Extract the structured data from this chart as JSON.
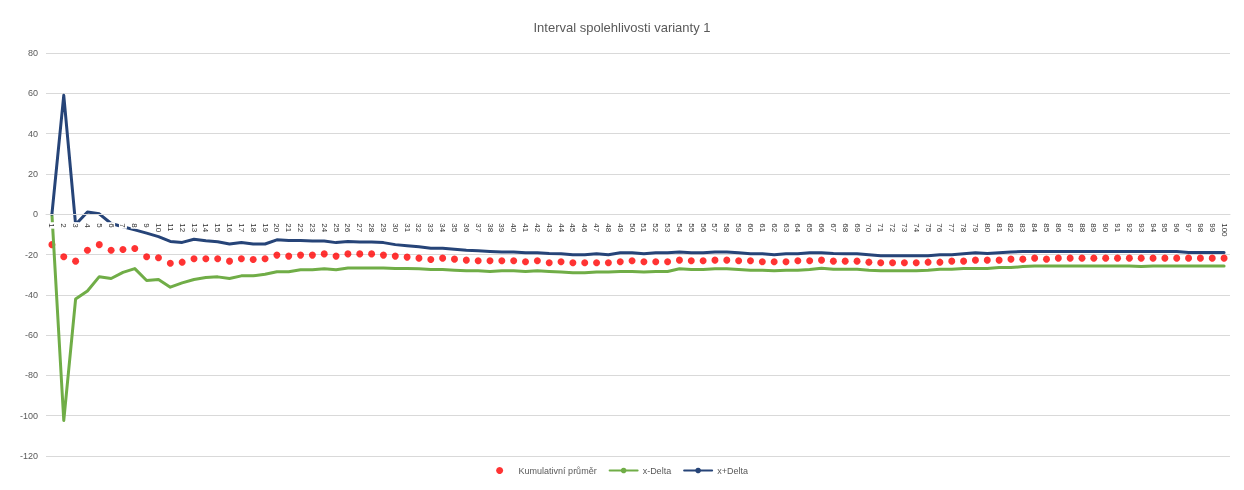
{
  "chart_data": {
    "type": "line",
    "title": "Interval spolehlivosti varianty 1",
    "categories": [
      "1",
      "2",
      "3",
      "4",
      "5",
      "6",
      "7",
      "8",
      "9",
      "10",
      "11",
      "12",
      "13",
      "14",
      "15",
      "16",
      "17",
      "18",
      "19",
      "20",
      "21",
      "22",
      "23",
      "24",
      "25",
      "26",
      "27",
      "28",
      "29",
      "30",
      "31",
      "32",
      "33",
      "34",
      "35",
      "36",
      "37",
      "38",
      "39",
      "40",
      "41",
      "42",
      "43",
      "44",
      "45",
      "46",
      "47",
      "48",
      "49",
      "50",
      "51",
      "52",
      "53",
      "54",
      "55",
      "56",
      "57",
      "58",
      "59",
      "60",
      "61",
      "62",
      "63",
      "64",
      "65",
      "66",
      "67",
      "68",
      "69",
      "70",
      "71",
      "72",
      "73",
      "74",
      "75",
      "76",
      "77",
      "78",
      "79",
      "80",
      "81",
      "82",
      "83",
      "84",
      "85",
      "86",
      "87",
      "88",
      "89",
      "90",
      "91",
      "92",
      "93",
      "94",
      "95",
      "96",
      "97",
      "98",
      "99",
      "100"
    ],
    "series": [
      {
        "name": "Kumulativní průměr",
        "type": "scatter",
        "marker": "circle",
        "color": "#ff0000",
        "values": [
          -15.1,
          -21.1,
          -23.3,
          -17.9,
          -15.1,
          -17.9,
          -17.5,
          -17.0,
          -21.1,
          -21.6,
          -24.3,
          -23.8,
          -22.1,
          -22.1,
          -22.1,
          -23.3,
          -22.1,
          -22.5,
          -22.1,
          -20.3,
          -20.8,
          -20.3,
          -20.3,
          -19.7,
          -20.8,
          -19.7,
          -19.7,
          -19.7,
          -20.3,
          -20.8,
          -21.3,
          -21.8,
          -22.5,
          -21.8,
          -22.3,
          -22.8,
          -23.1,
          -23.1,
          -23.1,
          -23.1,
          -23.6,
          -23.1,
          -24.1,
          -23.6,
          -24.1,
          -24.1,
          -24.1,
          -24.1,
          -23.6,
          -23.1,
          -23.6,
          -23.6,
          -23.6,
          -22.8,
          -23.1,
          -23.1,
          -22.8,
          -22.8,
          -23.1,
          -23.1,
          -23.6,
          -23.6,
          -23.6,
          -23.1,
          -23.1,
          -22.8,
          -23.3,
          -23.3,
          -23.3,
          -23.8,
          -24.1,
          -24.1,
          -24.1,
          -24.1,
          -23.8,
          -23.8,
          -23.3,
          -23.3,
          -22.8,
          -22.8,
          -22.8,
          -22.3,
          -22.3,
          -21.8,
          -22.3,
          -21.8,
          -21.8,
          -21.8,
          -21.8,
          -21.8,
          -21.8,
          -21.8,
          -21.8,
          -21.8,
          -21.8,
          -21.8,
          -21.8,
          -21.8,
          -21.8,
          -21.8
        ]
      },
      {
        "name": "x-Delta",
        "type": "line",
        "color": "#70ad47",
        "values": [
          0,
          -102.4,
          -42.1,
          -38.1,
          -31.0,
          -31.9,
          -28.9,
          -27.0,
          -32.9,
          -32.4,
          -36.2,
          -34.1,
          -32.4,
          -31.4,
          -31.1,
          -31.9,
          -30.6,
          -30.6,
          -29.8,
          -28.6,
          -28.6,
          -27.6,
          -27.6,
          -27.1,
          -27.6,
          -26.7,
          -26.7,
          -26.7,
          -26.7,
          -27.0,
          -26.9,
          -27.1,
          -27.4,
          -27.4,
          -27.8,
          -28.1,
          -28.1,
          -28.4,
          -28.1,
          -28.1,
          -28.4,
          -28.1,
          -28.4,
          -28.7,
          -29.0,
          -29.0,
          -28.7,
          -28.7,
          -28.4,
          -28.4,
          -28.7,
          -28.4,
          -28.4,
          -27.1,
          -27.4,
          -27.4,
          -27.1,
          -27.1,
          -27.4,
          -27.8,
          -27.8,
          -28.1,
          -27.8,
          -27.8,
          -27.4,
          -26.8,
          -27.3,
          -27.3,
          -27.3,
          -27.8,
          -28.1,
          -28.1,
          -28.1,
          -28.1,
          -27.8,
          -27.3,
          -27.3,
          -27.0,
          -27.0,
          -27.0,
          -26.5,
          -26.5,
          -26.0,
          -25.7,
          -25.7,
          -25.7,
          -25.7,
          -25.7,
          -25.7,
          -25.7,
          -25.7,
          -25.7,
          -26.0,
          -25.7,
          -25.7,
          -25.7,
          -25.7,
          -25.7,
          -25.7,
          -25.7
        ]
      },
      {
        "name": "x+Delta",
        "type": "line",
        "color": "#264478",
        "values": [
          0,
          59,
          -5.1,
          1.1,
          0.2,
          -4.6,
          -6.2,
          -7.8,
          -9.4,
          -11.1,
          -13.5,
          -14.0,
          -12.4,
          -13.2,
          -13.7,
          -14.8,
          -14.0,
          -14.8,
          -14.8,
          -12.7,
          -13.0,
          -13.0,
          -13.3,
          -13.3,
          -14.1,
          -13.5,
          -13.8,
          -13.8,
          -14.1,
          -15.1,
          -15.6,
          -16.2,
          -16.9,
          -16.9,
          -17.4,
          -17.9,
          -18.2,
          -18.5,
          -18.7,
          -18.7,
          -19.1,
          -19.1,
          -19.5,
          -19.6,
          -20.1,
          -20.1,
          -19.6,
          -20.1,
          -19.1,
          -19.1,
          -19.6,
          -19.1,
          -19.1,
          -18.7,
          -19.1,
          -19.1,
          -18.7,
          -18.7,
          -19.1,
          -19.6,
          -19.6,
          -20.1,
          -19.6,
          -19.6,
          -19.1,
          -19.1,
          -19.5,
          -19.6,
          -19.6,
          -20.1,
          -20.6,
          -20.6,
          -20.6,
          -20.6,
          -20.6,
          -20.1,
          -20.1,
          -19.6,
          -19.1,
          -19.5,
          -19.1,
          -18.8,
          -18.5,
          -18.5,
          -18.5,
          -18.5,
          -18.5,
          -18.5,
          -18.5,
          -18.5,
          -18.5,
          -18.5,
          -18.5,
          -18.5,
          -18.5,
          -18.5,
          -19.0,
          -19.0,
          -19.0,
          -19.0
        ]
      }
    ],
    "ylim": [
      -120,
      80
    ],
    "yticks": [
      -120,
      -100,
      -80,
      -60,
      -40,
      -20,
      0,
      20,
      40,
      60,
      80
    ],
    "grid": "y",
    "legend": "bottom",
    "line_style": "solid"
  }
}
